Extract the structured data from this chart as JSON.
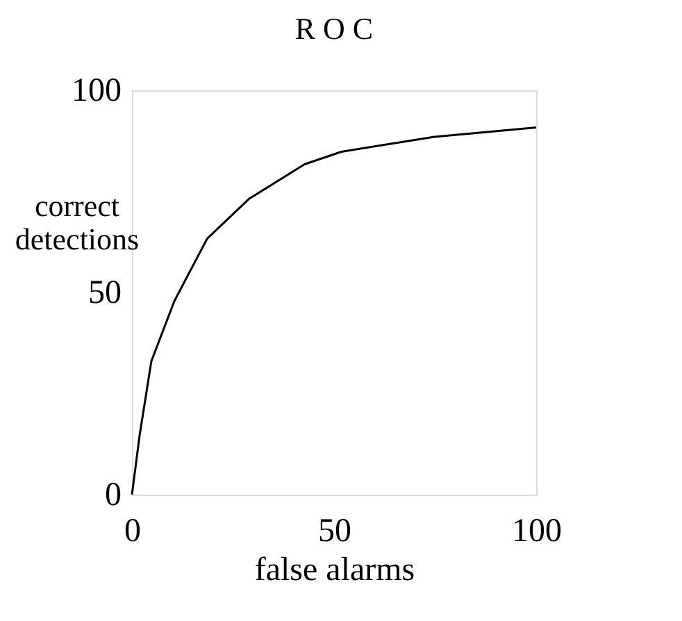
{
  "chart_data": {
    "type": "line",
    "title": "R O C",
    "xlabel": "false  alarms",
    "ylabel": "correct detections",
    "x": [
      0,
      1.9,
      4.8,
      10.5,
      18.6,
      28.9,
      42.7,
      51.8,
      74.8,
      100
    ],
    "series": [
      {
        "color": "#000000",
        "values": [
          0,
          14.7,
          33,
          47.9,
          63.3,
          73.1,
          81.7,
          84.8,
          88.5,
          90.8
        ]
      }
    ],
    "xlim": [
      0,
      100
    ],
    "ylim": [
      0,
      100
    ],
    "xticks": [
      0,
      50,
      100
    ],
    "yticks": [
      0,
      50,
      100
    ],
    "grid": false,
    "marker": "none",
    "line_style": "solid"
  }
}
